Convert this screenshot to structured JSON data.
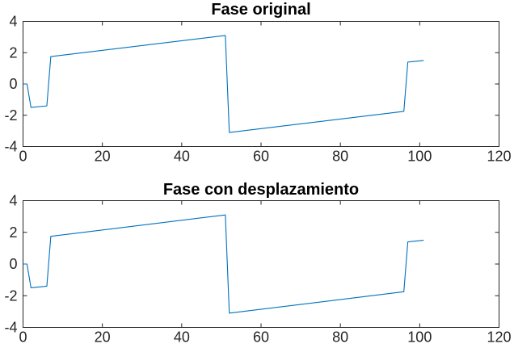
{
  "chart_data": [
    {
      "type": "line",
      "title": "Fase original",
      "xlabel": "",
      "ylabel": "",
      "xlim": [
        0,
        120
      ],
      "ylim": [
        -4,
        4
      ],
      "xticks": [
        0,
        20,
        40,
        60,
        80,
        100,
        120
      ],
      "yticks": [
        -4,
        -2,
        0,
        2,
        4
      ],
      "grid": false,
      "series": [
        {
          "color": "#0072BD",
          "x": [
            0,
            1,
            2,
            6,
            7,
            51,
            52,
            96,
            97,
            101
          ],
          "y": [
            0,
            0,
            -1.5,
            -1.4,
            1.75,
            3.1,
            -3.1,
            -1.75,
            1.4,
            1.5
          ]
        }
      ]
    },
    {
      "type": "line",
      "title": "Fase con desplazamiento",
      "xlabel": "",
      "ylabel": "",
      "xlim": [
        0,
        120
      ],
      "ylim": [
        -4,
        4
      ],
      "xticks": [
        0,
        20,
        40,
        60,
        80,
        100,
        120
      ],
      "yticks": [
        -4,
        -2,
        0,
        2,
        4
      ],
      "grid": false,
      "series": [
        {
          "color": "#0072BD",
          "x": [
            0,
            1,
            2,
            6,
            7,
            51,
            52,
            96,
            97,
            101
          ],
          "y": [
            0,
            0,
            -1.5,
            -1.4,
            1.75,
            3.1,
            -3.1,
            -1.75,
            1.4,
            1.5
          ]
        }
      ]
    }
  ]
}
